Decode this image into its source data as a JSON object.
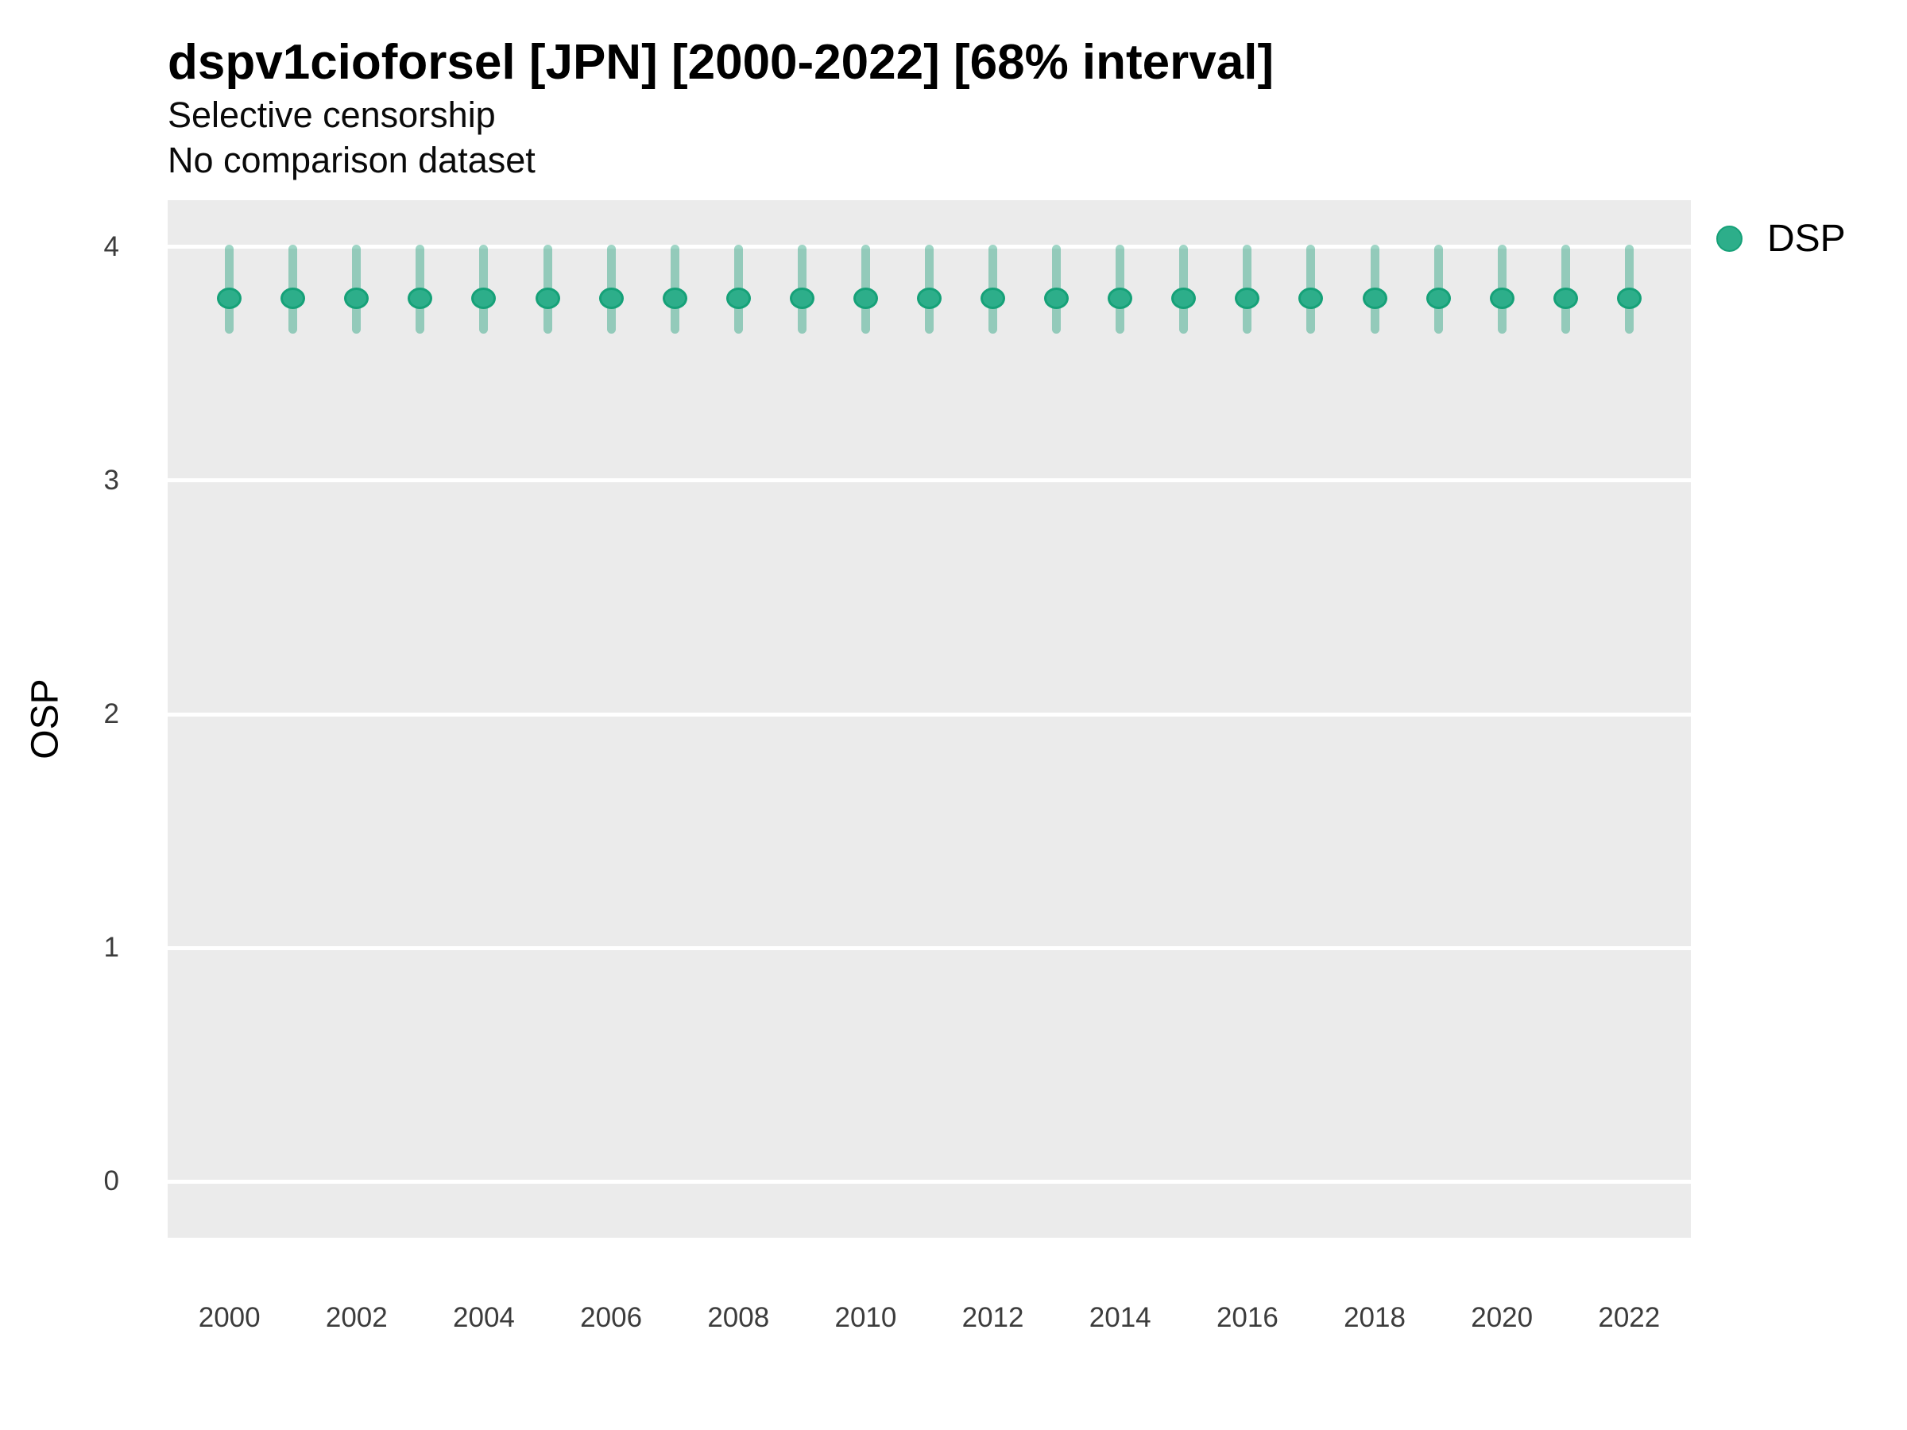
{
  "header": {
    "title": "dspv1cioforsel [JPN] [2000-2022] [68% interval]",
    "subtitle": "Selective censorship",
    "subtitle2": "No comparison dataset"
  },
  "chart_data": {
    "type": "scatter",
    "variant": "point-interval",
    "title": "dspv1cioforsel [JPN] [2000-2022] [68% interval]",
    "subtitle_lines": [
      "Selective censorship",
      "No comparison dataset"
    ],
    "xlabel": "",
    "ylabel": "OSP",
    "interval_note": "68% interval",
    "x": [
      2000,
      2001,
      2002,
      2003,
      2004,
      2005,
      2006,
      2007,
      2008,
      2009,
      2010,
      2011,
      2012,
      2013,
      2014,
      2015,
      2016,
      2017,
      2018,
      2019,
      2020,
      2021,
      2022
    ],
    "series": [
      {
        "name": "DSP",
        "point_estimates": [
          3.78,
          3.78,
          3.78,
          3.78,
          3.78,
          3.78,
          3.78,
          3.78,
          3.78,
          3.78,
          3.78,
          3.78,
          3.78,
          3.78,
          3.78,
          3.78,
          3.78,
          3.78,
          3.78,
          3.78,
          3.78,
          3.78,
          3.78
        ],
        "lower_68": [
          3.63,
          3.63,
          3.63,
          3.63,
          3.63,
          3.63,
          3.63,
          3.63,
          3.63,
          3.63,
          3.63,
          3.63,
          3.63,
          3.63,
          3.63,
          3.63,
          3.63,
          3.63,
          3.63,
          3.63,
          3.63,
          3.63,
          3.63
        ],
        "upper_68": [
          4.01,
          4.01,
          4.01,
          4.01,
          4.01,
          4.01,
          4.01,
          4.01,
          4.01,
          4.01,
          4.01,
          4.01,
          4.01,
          4.01,
          4.01,
          4.01,
          4.01,
          4.01,
          4.01,
          4.01,
          4.01,
          4.01,
          4.01
        ]
      }
    ],
    "xticks": [
      2000,
      2002,
      2004,
      2006,
      2008,
      2010,
      2012,
      2014,
      2016,
      2018,
      2020,
      2022
    ],
    "yticks": [
      0,
      1,
      2,
      3,
      4
    ],
    "xlim": [
      1999.03,
      2022.97
    ],
    "ylim": [
      -0.24,
      4.2
    ],
    "grid": {
      "horizontal_major": true,
      "vertical": false,
      "minor": false
    },
    "legend": {
      "position": "top-right",
      "entries": [
        {
          "label": "DSP",
          "color": "#2dae8a"
        }
      ]
    },
    "colors": {
      "point_fill": "#2dae8a",
      "point_stroke": "#16a178",
      "interval_stroke": "#1b9e77",
      "interval_alpha": 0.42,
      "panel_background": "#ebebeb",
      "gridline": "#ffffff",
      "title_text": "#000000",
      "axis_text": "#3c3c3c"
    }
  }
}
